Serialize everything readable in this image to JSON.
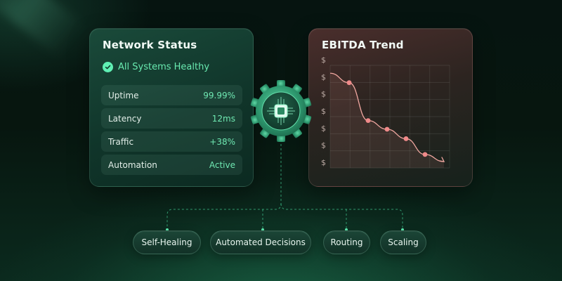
{
  "network_status": {
    "title": "Network Status",
    "health_text": "All Systems Healthy",
    "rows": [
      {
        "label": "Uptime",
        "value": "99.99%"
      },
      {
        "label": "Latency",
        "value": "12ms"
      },
      {
        "label": "Traffic",
        "value": "+38%"
      },
      {
        "label": "Automation",
        "value": "Active"
      }
    ]
  },
  "ebitda": {
    "title": "EBITDA Trend",
    "tick_labels": [
      "$",
      "$",
      "$",
      "$",
      "$",
      "$",
      "$"
    ]
  },
  "capabilities": [
    "Self-Healing",
    "Automated Decisions",
    "Routing",
    "Scaling"
  ],
  "icons": {
    "status": "check-circle-icon",
    "center": "cpu-chip-gear-icon"
  },
  "colors": {
    "accent_green": "#5ff0b4",
    "trend_point": "#f08a8a"
  },
  "chart_data": {
    "type": "line",
    "title": "EBITDA Trend",
    "xlabel": "",
    "ylabel": "",
    "y_tick_labels": [
      "$",
      "$",
      "$",
      "$",
      "$",
      "$",
      "$"
    ],
    "grid": true,
    "series": [
      {
        "values": [
          6.0,
          5.4,
          3.0,
          2.45,
          1.85,
          0.85,
          0.4
        ]
      }
    ],
    "ylim": [
      0,
      6.5
    ]
  }
}
